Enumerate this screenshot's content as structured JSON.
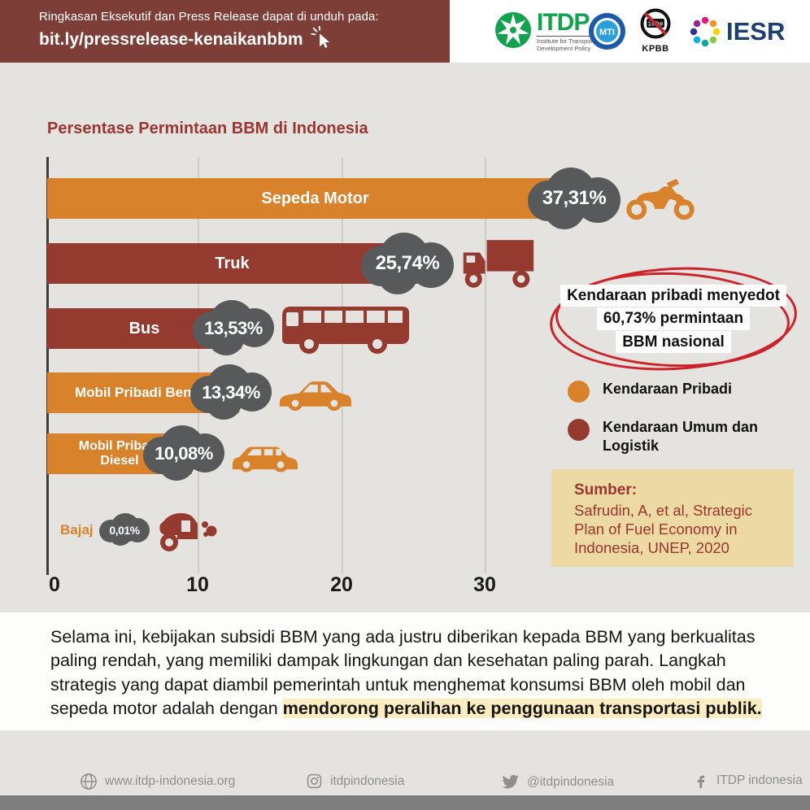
{
  "header": {
    "line1": "Ringkasan Eksekutif dan Press Release dapat di unduh pada:",
    "link": "bit.ly/pressrelease-kenaikanbbm",
    "logos": {
      "itdp": {
        "word": "ITDP",
        "tagline": "Institute for Transportation & Development Policy"
      },
      "mti": {
        "word": "MTI"
      },
      "kpbb": {
        "inner": "timbel",
        "word": "KPBB"
      },
      "iesr": {
        "word": "IESR"
      }
    }
  },
  "chart_data": {
    "type": "bar",
    "orientation": "horizontal",
    "title": "Persentase Permintaan BBM di Indonesia",
    "categories": [
      "Sepeda Motor",
      "Truk",
      "Bus",
      "Mobil Pribadi Bensin",
      "Mobil Pribadi Diesel",
      "Bajaj"
    ],
    "values": [
      37.31,
      25.74,
      13.53,
      13.34,
      10.08,
      0.01
    ],
    "value_labels": [
      "37,31%",
      "25,74%",
      "13,53%",
      "13,34%",
      "10,08%",
      "0,01%"
    ],
    "groups": [
      "pribadi",
      "umum",
      "umum",
      "pribadi",
      "pribadi",
      "umum"
    ],
    "colors": {
      "pribadi": "#D9822C",
      "umum": "#953A2F"
    },
    "x_ticks": [
      "0",
      "10",
      "20",
      "30"
    ],
    "xlim": [
      0,
      38
    ],
    "grid": true,
    "legend": [
      {
        "label": "Kendaraan Pribadi",
        "color": "#D9822C"
      },
      {
        "label": "Kendaraan Umum dan Logistik",
        "color": "#953A2F"
      }
    ],
    "callout": {
      "line1": "Kendaraan pribadi menyedot",
      "line2": "60,73% permintaan",
      "line3": "BBM nasional"
    },
    "source": {
      "heading": "Sumber:",
      "text": "Safrudin, A, et al, Strategic Plan of Fuel Economy in Indonesia, UNEP, 2020"
    }
  },
  "paragraph": {
    "lead": "Selama ini, kebijakan subsidi BBM yang ada justru diberikan kepada BBM yang berkualitas paling rendah, yang memiliki dampak lingkungan dan kesehatan paling parah. Langkah strategis yang dapat diambil pemerintah untuk menghemat konsumsi BBM oleh mobil dan sepeda motor adalah dengan ",
    "highlight": "mendorong peralihan ke penggunaan transportasi publik."
  },
  "footer": {
    "website": "www.itdp-indonesia.org",
    "instagram": "itdpindonesia",
    "twitter": "@itdpindonesia",
    "facebook": "ITDP indonesia"
  }
}
